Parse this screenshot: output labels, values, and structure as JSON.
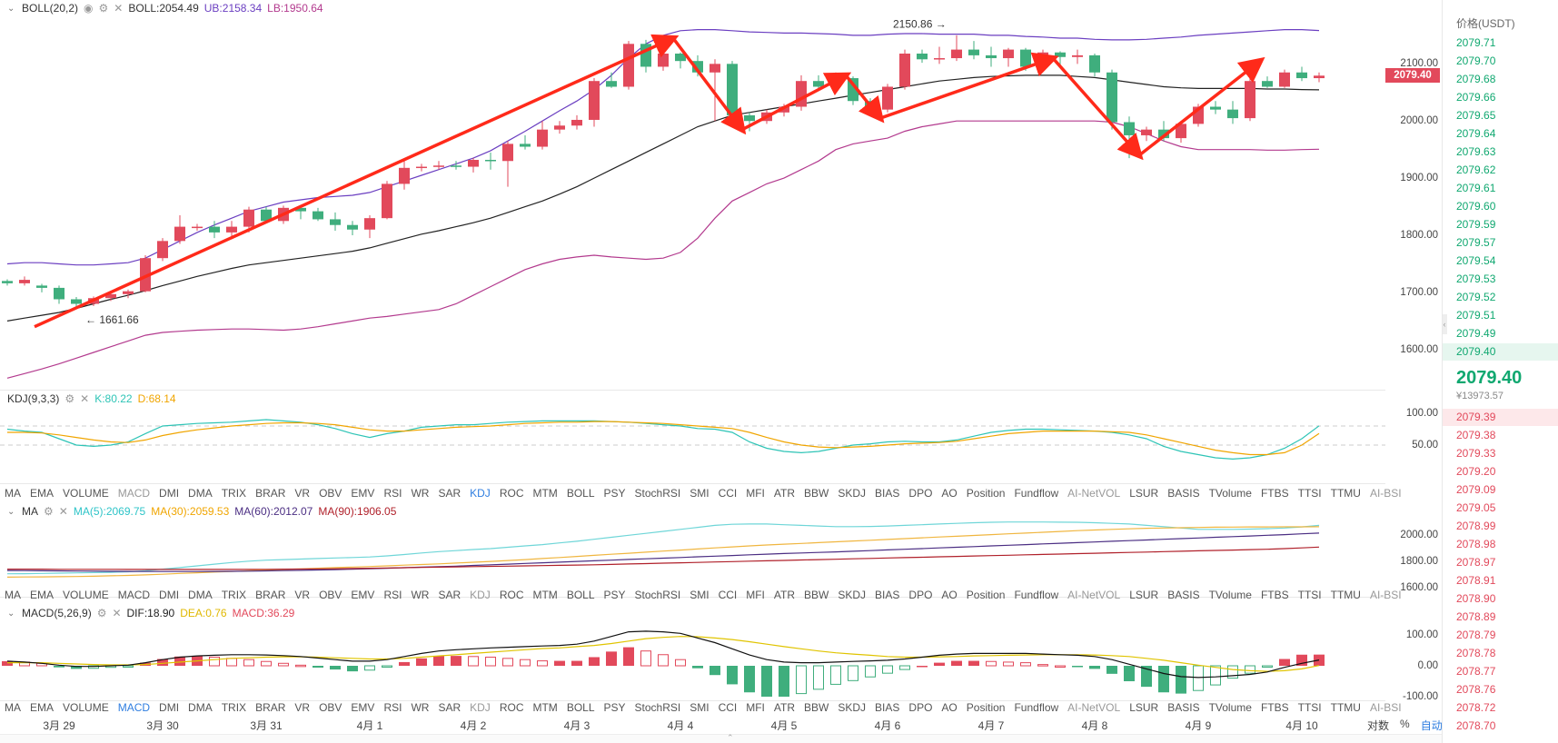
{
  "boll_header": {
    "name": "BOLL(20,2)",
    "boll": "BOLL:2054.49",
    "ub": "UB:2158.34",
    "lb": "LB:1950.64"
  },
  "kdj_header": {
    "name": "KDJ(9,3,3)",
    "k": "K:80.22",
    "d": "D:68.14"
  },
  "ma_header": {
    "name": "MA",
    "ma5": "MA(5):2069.75",
    "ma30": "MA(30):2059.53",
    "ma60": "MA(60):2012.07",
    "ma90": "MA(90):1906.05"
  },
  "macd_header": {
    "name": "MACD(5,26,9)",
    "dif": "DIF:18.90",
    "dea": "DEA:0.76",
    "macd": "MACD:36.29"
  },
  "main_annotations": {
    "low": "1661.66",
    "high": "2150.86"
  },
  "current_price": "2079.40",
  "indicator_tabs": [
    "MA",
    "EMA",
    "VOLUME",
    "MACD",
    "DMI",
    "DMA",
    "TRIX",
    "BRAR",
    "VR",
    "OBV",
    "EMV",
    "RSI",
    "WR",
    "SAR",
    "KDJ",
    "ROC",
    "MTM",
    "BOLL",
    "PSY",
    "StochRSI",
    "SMI",
    "CCI",
    "MFI",
    "ATR",
    "BBW",
    "SKDJ",
    "BIAS",
    "DPO",
    "AO",
    "Position",
    "Fundflow",
    "AI-NetVOL",
    "LSUR",
    "BASIS",
    "TVolume",
    "FTBS",
    "TTSI",
    "TTMU",
    "AI-BSI"
  ],
  "tabs_row1_active": "KDJ",
  "tabs_row3_active": "MACD",
  "main_y_ticks": [
    "2100.00",
    "2000.00",
    "1900.00",
    "1800.00",
    "1700.00",
    "1600.00"
  ],
  "kdj_y_ticks": [
    "100.00",
    "50.00"
  ],
  "ma_y_ticks": [
    "2000.00",
    "1800.00",
    "1600.00"
  ],
  "macd_y_ticks": [
    "100.00",
    "0.00",
    "-100.00"
  ],
  "x_labels": [
    "3月 29",
    "3月 30",
    "3月 31",
    "4月 1",
    "4月 2",
    "4月 3",
    "4月 4",
    "4月 5",
    "4月 6",
    "4月 7",
    "4月 8",
    "4月 9",
    "4月 10"
  ],
  "axis_tools": {
    "log": "对数",
    "percent": "%",
    "auto": "自动"
  },
  "orderbook": {
    "header": "价格(USDT)",
    "asks": [
      "2079.71",
      "2079.70",
      "2079.68",
      "2079.66",
      "2079.65",
      "2079.64",
      "2079.63",
      "2079.62",
      "2079.61",
      "2079.60",
      "2079.59",
      "2079.57",
      "2079.54",
      "2079.53",
      "2079.52",
      "2079.51",
      "2079.49",
      "2079.40"
    ],
    "mid_price": "2079.40",
    "mid_fiat": "¥13973.57",
    "bids": [
      "2079.39",
      "2079.38",
      "2079.33",
      "2079.20",
      "2079.09",
      "2079.05",
      "2078.99",
      "2078.98",
      "2078.97",
      "2078.91",
      "2078.90",
      "2078.89",
      "2078.79",
      "2078.78",
      "2078.77",
      "2078.76",
      "2078.72",
      "2078.70"
    ]
  },
  "chart_data": {
    "type": "candlestick",
    "candles": [
      [
        1720,
        1723,
        1712,
        1716
      ],
      [
        1716,
        1728,
        1712,
        1722
      ],
      [
        1712,
        1715,
        1700,
        1708
      ],
      [
        1708,
        1712,
        1680,
        1688
      ],
      [
        1688,
        1692,
        1672,
        1680
      ],
      [
        1680,
        1693,
        1676,
        1690
      ],
      [
        1690,
        1700,
        1685,
        1697
      ],
      [
        1697,
        1705,
        1690,
        1702
      ],
      [
        1702,
        1765,
        1700,
        1760
      ],
      [
        1760,
        1795,
        1755,
        1790
      ],
      [
        1790,
        1835,
        1785,
        1815
      ],
      [
        1815,
        1820,
        1808,
        1815
      ],
      [
        1815,
        1825,
        1795,
        1805
      ],
      [
        1805,
        1825,
        1798,
        1815
      ],
      [
        1815,
        1850,
        1805,
        1845
      ],
      [
        1845,
        1850,
        1822,
        1825
      ],
      [
        1825,
        1852,
        1820,
        1848
      ],
      [
        1848,
        1852,
        1828,
        1842
      ],
      [
        1842,
        1848,
        1825,
        1828
      ],
      [
        1828,
        1840,
        1808,
        1818
      ],
      [
        1818,
        1825,
        1800,
        1810
      ],
      [
        1810,
        1835,
        1795,
        1830
      ],
      [
        1830,
        1895,
        1828,
        1890
      ],
      [
        1890,
        1930,
        1880,
        1918
      ],
      [
        1918,
        1925,
        1912,
        1920
      ],
      [
        1920,
        1930,
        1915,
        1922
      ],
      [
        1922,
        1930,
        1915,
        1920
      ],
      [
        1920,
        1935,
        1910,
        1932
      ],
      [
        1932,
        1945,
        1915,
        1930
      ],
      [
        1930,
        1965,
        1885,
        1960
      ],
      [
        1960,
        1975,
        1950,
        1955
      ],
      [
        1955,
        2000,
        1950,
        1985
      ],
      [
        1985,
        2000,
        1978,
        1992
      ],
      [
        1992,
        2010,
        1985,
        2002
      ],
      [
        2002,
        2075,
        1990,
        2070
      ],
      [
        2070,
        2085,
        2058,
        2060
      ],
      [
        2060,
        2140,
        2055,
        2135
      ],
      [
        2135,
        2142,
        2085,
        2095
      ],
      [
        2095,
        2125,
        2088,
        2118
      ],
      [
        2118,
        2120,
        2092,
        2105
      ],
      [
        2105,
        2115,
        2078,
        2085
      ],
      [
        2085,
        2108,
        2000,
        2100
      ],
      [
        2100,
        2105,
        2005,
        2010
      ],
      [
        2010,
        2015,
        1982,
        2000
      ],
      [
        2000,
        2020,
        1995,
        2015
      ],
      [
        2015,
        2030,
        2008,
        2025
      ],
      [
        2025,
        2080,
        2018,
        2070
      ],
      [
        2070,
        2080,
        2055,
        2060
      ],
      [
        2060,
        2085,
        2050,
        2075
      ],
      [
        2075,
        2078,
        2028,
        2035
      ],
      [
        2035,
        2040,
        2012,
        2020
      ],
      [
        2020,
        2065,
        2015,
        2060
      ],
      [
        2060,
        2125,
        2055,
        2118
      ],
      [
        2118,
        2125,
        2102,
        2108
      ],
      [
        2108,
        2130,
        2100,
        2110
      ],
      [
        2110,
        2150,
        2105,
        2125
      ],
      [
        2125,
        2140,
        2108,
        2115
      ],
      [
        2115,
        2130,
        2095,
        2110
      ],
      [
        2110,
        2128,
        2095,
        2125
      ],
      [
        2125,
        2128,
        2088,
        2095
      ],
      [
        2095,
        2125,
        2090,
        2120
      ],
      [
        2120,
        2122,
        2098,
        2112
      ],
      [
        2112,
        2125,
        2100,
        2115
      ],
      [
        2115,
        2118,
        2078,
        2085
      ],
      [
        2085,
        2090,
        1985,
        1998
      ],
      [
        1998,
        2008,
        1935,
        1975
      ],
      [
        1975,
        1990,
        1965,
        1985
      ],
      [
        1985,
        2000,
        1965,
        1970
      ],
      [
        1970,
        2000,
        1962,
        1995
      ],
      [
        1995,
        2030,
        1990,
        2025
      ],
      [
        2025,
        2035,
        2012,
        2020
      ],
      [
        2020,
        2035,
        1995,
        2005
      ],
      [
        2005,
        2075,
        2000,
        2070
      ],
      [
        2070,
        2078,
        2058,
        2060
      ],
      [
        2060,
        2090,
        2058,
        2085
      ],
      [
        2085,
        2095,
        2070,
        2075
      ],
      [
        2075,
        2085,
        2068,
        2079.4
      ]
    ],
    "boll_mid": [
      1650,
      1655,
      1660,
      1665,
      1672,
      1680,
      1688,
      1695,
      1703,
      1712,
      1720,
      1728,
      1735,
      1742,
      1748,
      1752,
      1756,
      1760,
      1764,
      1768,
      1772,
      1778,
      1786,
      1794,
      1802,
      1808,
      1815,
      1822,
      1830,
      1840,
      1850,
      1860,
      1872,
      1885,
      1900,
      1915,
      1930,
      1945,
      1960,
      1975,
      1990,
      2000,
      2010,
      2015,
      2020,
      2025,
      2030,
      2035,
      2040,
      2045,
      2050,
      2055,
      2060,
      2065,
      2070,
      2073,
      2076,
      2078,
      2079,
      2080,
      2080,
      2080,
      2078,
      2076,
      2072,
      2068,
      2064,
      2060,
      2058,
      2057,
      2057,
      2057,
      2057,
      2056,
      2056,
      2055,
      2054.49
    ],
    "boll_ub": [
      1750,
      1752,
      1752,
      1750,
      1748,
      1748,
      1750,
      1752,
      1760,
      1775,
      1790,
      1805,
      1818,
      1830,
      1842,
      1850,
      1858,
      1862,
      1866,
      1868,
      1870,
      1875,
      1885,
      1895,
      1905,
      1915,
      1925,
      1935,
      1948,
      1965,
      1982,
      2000,
      2018,
      2035,
      2055,
      2080,
      2110,
      2135,
      2150,
      2158,
      2160,
      2160,
      2158,
      2156,
      2155,
      2154,
      2154,
      2153,
      2152,
      2150,
      2150,
      2152,
      2153,
      2153,
      2152,
      2152,
      2152,
      2150,
      2150,
      2148,
      2147,
      2145,
      2145,
      2143,
      2142,
      2142,
      2143,
      2145,
      2147,
      2150,
      2152,
      2154,
      2156,
      2158,
      2160,
      2160,
      2158.34
    ],
    "boll_lb": [
      1550,
      1558,
      1566,
      1575,
      1585,
      1595,
      1605,
      1615,
      1625,
      1630,
      1632,
      1634,
      1635,
      1636,
      1636,
      1635,
      1634,
      1636,
      1640,
      1645,
      1650,
      1655,
      1658,
      1662,
      1666,
      1670,
      1680,
      1695,
      1710,
      1725,
      1740,
      1750,
      1758,
      1762,
      1765,
      1762,
      1760,
      1758,
      1760,
      1770,
      1795,
      1830,
      1860,
      1875,
      1890,
      1900,
      1915,
      1930,
      1950,
      1960,
      1965,
      1970,
      1982,
      1990,
      1995,
      2000,
      2000,
      2000,
      2000,
      2000,
      2000,
      2000,
      2000,
      2000,
      1998,
      1990,
      1978,
      1965,
      1955,
      1950,
      1950,
      1950,
      1950,
      1949,
      1949,
      1950,
      1950.64
    ],
    "kdj_k": [
      75,
      72,
      70,
      60,
      50,
      48,
      50,
      55,
      68,
      80,
      82,
      84,
      85,
      86,
      88,
      90,
      88,
      86,
      82,
      76,
      68,
      62,
      68,
      72,
      78,
      80,
      82,
      82,
      84,
      86,
      87,
      88,
      88,
      88,
      88,
      87,
      86,
      84,
      82,
      80,
      76,
      75,
      70,
      55,
      45,
      40,
      38,
      40,
      45,
      50,
      52,
      55,
      56,
      55,
      55,
      58,
      64,
      70,
      73,
      75,
      75,
      74,
      73,
      72,
      70,
      66,
      60,
      48,
      40,
      35,
      30,
      28,
      30,
      35,
      45,
      60,
      80.22
    ],
    "kdj_d": [
      70,
      70,
      69,
      66,
      62,
      58,
      55,
      54,
      58,
      65,
      70,
      74,
      77,
      80,
      82,
      84,
      85,
      85,
      84,
      82,
      78,
      74,
      72,
      72,
      74,
      76,
      78,
      79,
      80,
      82,
      84,
      85,
      86,
      86,
      87,
      87,
      86,
      85,
      84,
      82,
      80,
      78,
      76,
      70,
      62,
      55,
      50,
      47,
      46,
      47,
      48,
      50,
      52,
      53,
      54,
      56,
      60,
      64,
      68,
      70,
      72,
      72,
      72,
      72,
      71,
      70,
      66,
      60,
      54,
      48,
      42,
      38,
      35,
      35,
      38,
      50,
      68.14
    ],
    "ma5": [
      1705,
      1706,
      1708,
      1710,
      1712,
      1714,
      1716,
      1720,
      1728,
      1740,
      1752,
      1765,
      1778,
      1790,
      1800,
      1808,
      1812,
      1816,
      1820,
      1824,
      1828,
      1832,
      1840,
      1850,
      1862,
      1872,
      1880,
      1888,
      1895,
      1905,
      1915,
      1925,
      1938,
      1950,
      1965,
      1980,
      1995,
      2010,
      2025,
      2040,
      2055,
      2070,
      2078,
      2080,
      2080,
      2075,
      2070,
      2065,
      2060,
      2060,
      2062,
      2065,
      2070,
      2075,
      2080,
      2085,
      2090,
      2093,
      2095,
      2095,
      2095,
      2094,
      2093,
      2090,
      2085,
      2080,
      2070,
      2060,
      2050,
      2040,
      2040,
      2040,
      2042,
      2045,
      2050,
      2058,
      2069.75
    ],
    "ma30": [
      1680,
      1681,
      1682,
      1683,
      1685,
      1687,
      1690,
      1693,
      1697,
      1702,
      1708,
      1713,
      1718,
      1722,
      1728,
      1733,
      1738,
      1742,
      1747,
      1752,
      1756,
      1760,
      1765,
      1770,
      1775,
      1780,
      1786,
      1792,
      1798,
      1805,
      1812,
      1820,
      1828,
      1836,
      1844,
      1852,
      1860,
      1868,
      1876,
      1884,
      1892,
      1900,
      1908,
      1915,
      1922,
      1928,
      1934,
      1940,
      1946,
      1952,
      1958,
      1964,
      1970,
      1976,
      1982,
      1988,
      1994,
      2000,
      2006,
      2012,
      2018,
      2024,
      2030,
      2035,
      2040,
      2044,
      2048,
      2050,
      2052,
      2054,
      2056,
      2057,
      2058,
      2058,
      2059,
      2059,
      2059.53
    ],
    "ma60": [
      1730,
      1729,
      1728,
      1727,
      1726,
      1725,
      1724,
      1723,
      1722,
      1722,
      1722,
      1722,
      1723,
      1724,
      1725,
      1727,
      1729,
      1731,
      1734,
      1737,
      1740,
      1743,
      1747,
      1751,
      1755,
      1759,
      1763,
      1768,
      1773,
      1778,
      1783,
      1788,
      1793,
      1798,
      1803,
      1808,
      1813,
      1818,
      1823,
      1828,
      1833,
      1838,
      1843,
      1848,
      1853,
      1858,
      1862,
      1866,
      1870,
      1875,
      1880,
      1885,
      1890,
      1895,
      1900,
      1905,
      1910,
      1915,
      1920,
      1925,
      1930,
      1935,
      1940,
      1945,
      1950,
      1955,
      1960,
      1965,
      1970,
      1975,
      1980,
      1985,
      1990,
      1995,
      2000,
      2006,
      2012.07
    ],
    "ma90": [
      1740,
      1740,
      1740,
      1739,
      1739,
      1739,
      1739,
      1738,
      1738,
      1738,
      1738,
      1738,
      1738,
      1738,
      1738,
      1739,
      1740,
      1741,
      1742,
      1743,
      1745,
      1747,
      1749,
      1751,
      1753,
      1755,
      1757,
      1759,
      1761,
      1763,
      1765,
      1767,
      1769,
      1771,
      1773,
      1776,
      1779,
      1782,
      1785,
      1788,
      1791,
      1794,
      1797,
      1800,
      1803,
      1806,
      1809,
      1812,
      1815,
      1818,
      1821,
      1824,
      1827,
      1830,
      1833,
      1836,
      1839,
      1842,
      1845,
      1848,
      1851,
      1854,
      1857,
      1860,
      1863,
      1866,
      1869,
      1872,
      1875,
      1878,
      1881,
      1884,
      1887,
      1890,
      1895,
      1900,
      1906.05
    ],
    "macd_dif": [
      15,
      12,
      8,
      2,
      -2,
      -2,
      0,
      2,
      10,
      20,
      28,
      32,
      34,
      36,
      36,
      35,
      33,
      30,
      25,
      20,
      15,
      15,
      20,
      30,
      40,
      48,
      52,
      55,
      58,
      60,
      62,
      64,
      66,
      70,
      80,
      95,
      110,
      112,
      110,
      105,
      90,
      75,
      55,
      35,
      20,
      12,
      10,
      10,
      12,
      14,
      16,
      18,
      22,
      28,
      34,
      38,
      40,
      40,
      40,
      40,
      38,
      36,
      34,
      30,
      20,
      5,
      -10,
      -25,
      -35,
      -38,
      -36,
      -32,
      -28,
      -20,
      -5,
      8,
      18.9
    ],
    "macd_dea": [
      10,
      10,
      10,
      8,
      6,
      4,
      3,
      3,
      4,
      8,
      12,
      16,
      20,
      24,
      26,
      28,
      29,
      29,
      28,
      26,
      24,
      22,
      22,
      24,
      28,
      32,
      36,
      40,
      44,
      48,
      52,
      56,
      58,
      62,
      66,
      72,
      80,
      88,
      92,
      95,
      94,
      90,
      85,
      78,
      70,
      62,
      55,
      48,
      42,
      38,
      34,
      30,
      28,
      28,
      29,
      30,
      32,
      33,
      34,
      35,
      36,
      36,
      36,
      35,
      33,
      30,
      24,
      18,
      10,
      2,
      -5,
      -12,
      -16,
      -18,
      -16,
      -10,
      0.76
    ],
    "macd_hist": [
      15,
      12,
      8,
      -5,
      -10,
      -8,
      -5,
      -2,
      10,
      22,
      30,
      32,
      28,
      24,
      20,
      14,
      8,
      2,
      -6,
      -12,
      -18,
      -14,
      -4,
      12,
      24,
      32,
      32,
      30,
      28,
      24,
      20,
      16,
      16,
      16,
      28,
      46,
      60,
      48,
      36,
      20,
      -8,
      -30,
      -60,
      -86,
      -100,
      -100,
      -90,
      -76,
      -60,
      -48,
      -36,
      -24,
      -12,
      0,
      10,
      16,
      16,
      14,
      12,
      10,
      4,
      0,
      -4,
      -10,
      -26,
      -50,
      -68,
      -86,
      -90,
      -80,
      -62,
      -40,
      -24,
      -4,
      22,
      36,
      36.29
    ]
  }
}
